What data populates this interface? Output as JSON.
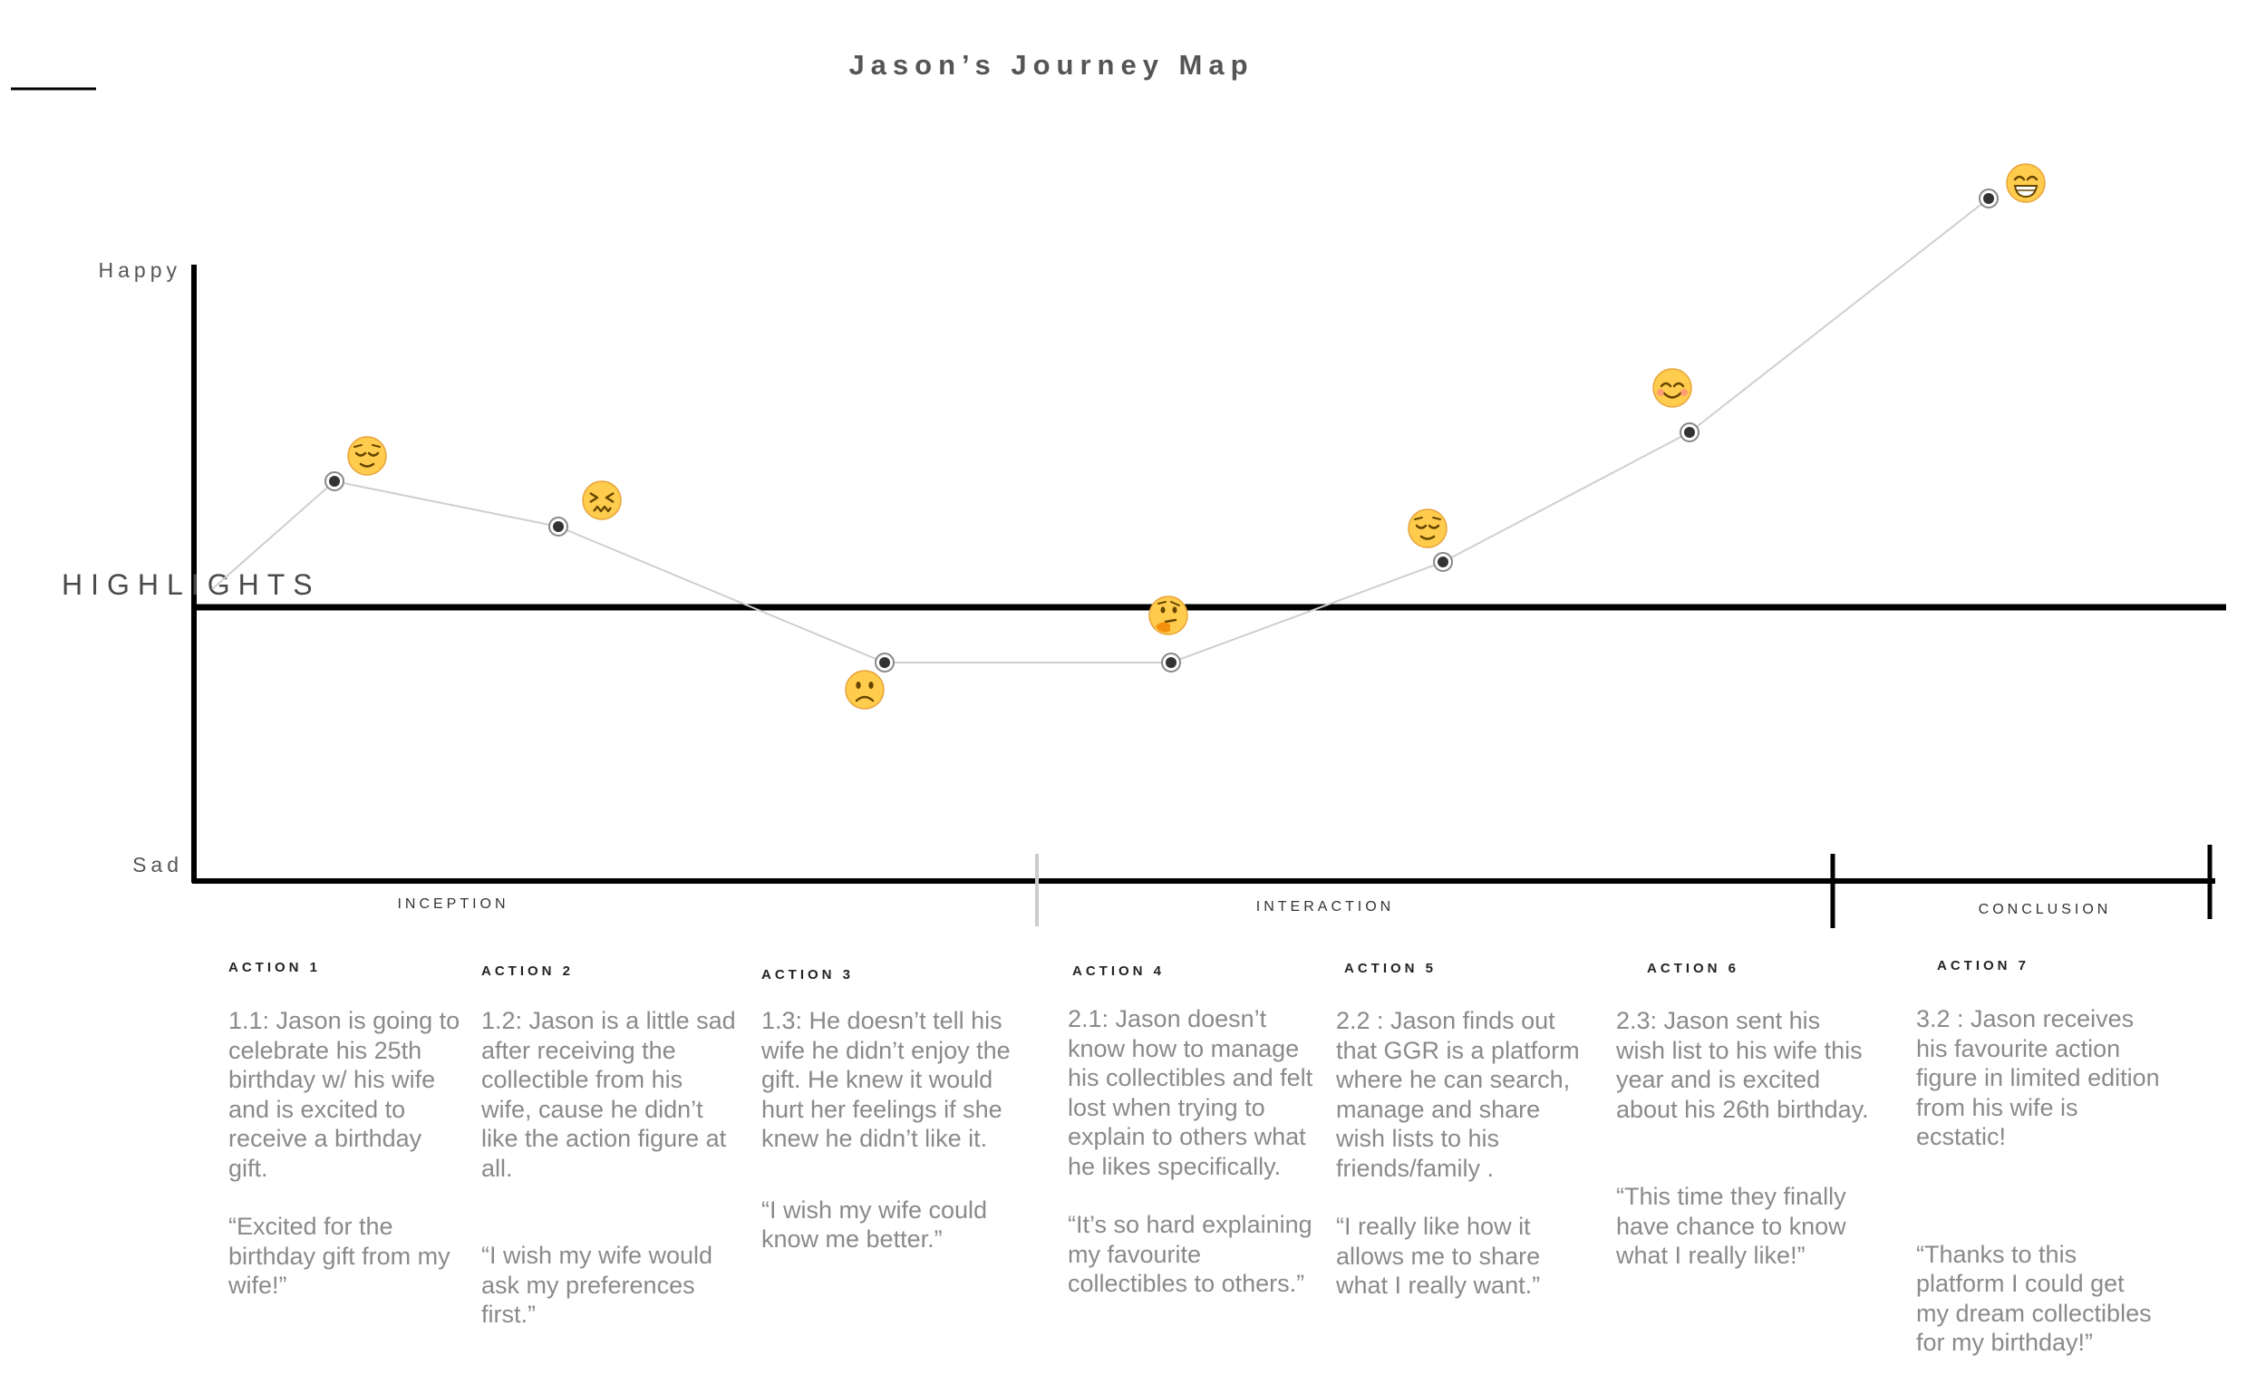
{
  "title": "Jason’s Journey Map",
  "y_axis": {
    "top_label": "Happy",
    "bottom_label": "Sad"
  },
  "highlights_label": "HIGHLIGHTS",
  "phases": [
    "INCEPTION",
    "INTERACTION",
    "CONCLUSION"
  ],
  "actions": [
    {
      "label": "ACTION 1",
      "description": "1.1: Jason is going to celebrate his 25th birthday w/ his wife and is excited to receive a birthday gift.",
      "quote": "“Excited for the birthday gift from my wife!”",
      "emotion_icon": "relieved-face-icon"
    },
    {
      "label": "ACTION 2",
      "description": "1.2: Jason is a little sad after receiving the collectible from his wife, cause he didn’t like the action figure at all.",
      "quote": "“I wish my wife would ask my preferences first.”",
      "emotion_icon": "confounded-face-icon"
    },
    {
      "label": "ACTION 3",
      "description": "1.3: He doesn’t tell his wife he didn’t enjoy the gift. He knew it would hurt her feelings if she knew he didn’t like it.",
      "quote": "“I wish my wife could know me better.”",
      "emotion_icon": "frowning-face-icon"
    },
    {
      "label": "ACTION 4",
      "description": "2.1: Jason doesn’t know how to manage his collectibles and felt lost when trying to explain to others what he likes specifically.",
      "quote": "“It’s so hard explaining my favourite collectibles to others.”",
      "emotion_icon": "thinking-face-icon"
    },
    {
      "label": "ACTION 5",
      "description": "2.2 : Jason finds out that GGR is a platform where he can search, manage and share wish lists to his friends/family  .",
      "quote": "“I really like how it allows me to share what I really want.”",
      "emotion_icon": "relieved-face-icon"
    },
    {
      "label": "ACTION 6",
      "description": "2.3: Jason sent his wish list to his wife this year and is excited about his 26th birthday.",
      "quote": "“This time they finally have chance to know what I really like!”",
      "emotion_icon": "smiling-face-icon"
    },
    {
      "label": "ACTION 7",
      "description": "3.2 : Jason receives his favourite action figure in limited edition from his wife is ecstatic!",
      "quote": "“Thanks to this platform I could get my dream collectibles for my birthday!”",
      "emotion_icon": "grinning-face-icon"
    }
  ]
}
